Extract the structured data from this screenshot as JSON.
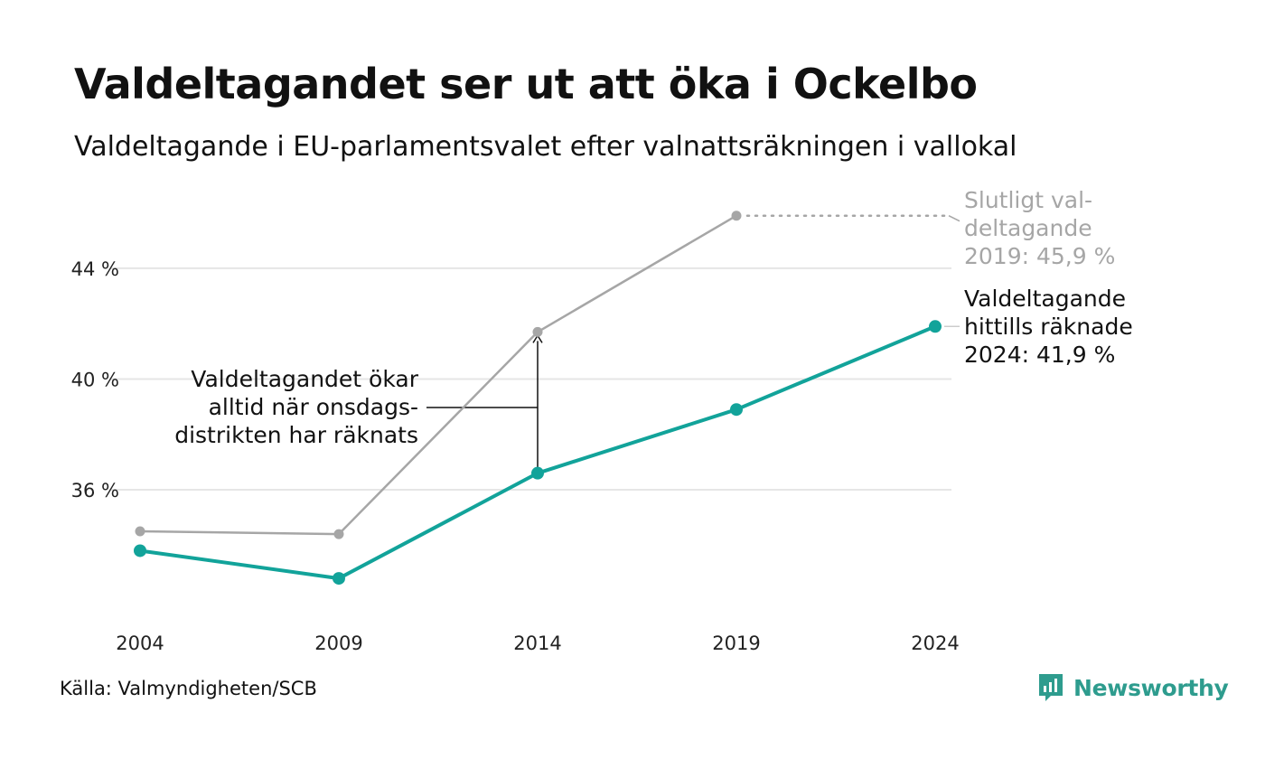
{
  "header": {
    "title": "Valdeltagandet ser ut att öka i Ockelbo",
    "subtitle": "Valdeltagande i EU-parlamentsvalet efter valnattsräkningen i vallokal"
  },
  "footer": {
    "source": "Källa: Valmyndigheten/SCB",
    "brand": "Newsworthy"
  },
  "colors": {
    "counted": "#12a39a",
    "final": "#a6a6a6",
    "grid": "#e6e6e6",
    "brand": "#2e9c8e"
  },
  "chart_data": {
    "type": "line",
    "categories": [
      "2004",
      "2009",
      "2014",
      "2019",
      "2024"
    ],
    "ylim": [
      31.4,
      47
    ],
    "y_ticks": [
      {
        "value": 36,
        "label": "36 %"
      },
      {
        "value": 40,
        "label": "40 %"
      },
      {
        "value": 44,
        "label": "44 %"
      }
    ],
    "grid": true,
    "series": [
      {
        "key": "final",
        "values": [
          34.5,
          34.4,
          41.7,
          45.9,
          null
        ]
      },
      {
        "key": "counted",
        "values": [
          33.8,
          32.8,
          36.6,
          38.9,
          41.9
        ]
      }
    ],
    "annotations": {
      "final": [
        "Slutligt val-",
        "deltagande",
        "2019: 45,9 %"
      ],
      "counted": [
        "Valdeltagande",
        "hittills räknade",
        "2024: 41,9 %"
      ],
      "gap": [
        "Valdeltagandet ökar",
        "alltid när onsdags-",
        "distrikten har räknats"
      ]
    }
  }
}
